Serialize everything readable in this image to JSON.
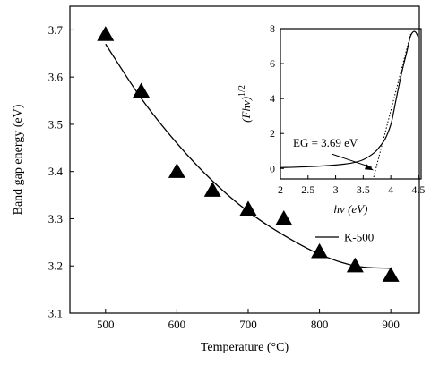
{
  "chart_data": [
    {
      "type": "scatter",
      "xlabel": "Temperature (°C)",
      "ylabel": "Band gap energy (eV)",
      "xlim": [
        450,
        940
      ],
      "ylim": [
        3.1,
        3.75
      ],
      "xticks": [
        500,
        600,
        700,
        800,
        900
      ],
      "yticks": [
        3.1,
        3.2,
        3.3,
        3.4,
        3.5,
        3.6,
        3.7
      ],
      "ytick_labels": [
        "3.1",
        "3.2",
        "3.3",
        "3.4",
        "3.5",
        "3.6",
        "3.7"
      ],
      "points": {
        "x": [
          500,
          550,
          600,
          650,
          700,
          750,
          800,
          850,
          900
        ],
        "y": [
          3.69,
          3.57,
          3.4,
          3.36,
          3.32,
          3.3,
          3.23,
          3.2,
          3.18
        ]
      },
      "fit": {
        "x": [
          500,
          550,
          600,
          650,
          700,
          750,
          800,
          850,
          900
        ],
        "y": [
          3.67,
          3.555,
          3.46,
          3.38,
          3.315,
          3.265,
          3.225,
          3.2,
          3.195
        ]
      },
      "marker": "triangle",
      "legend": {
        "label": "K-500",
        "placement": "inside-right"
      }
    },
    {
      "type": "line",
      "xlabel": "hν (eV)",
      "ylabel": "(Fhν)^1/2",
      "ylabel_base": "(Fhν)",
      "ylabel_sup": "1/2",
      "xlim": [
        2,
        4.55
      ],
      "ylim": [
        -0.6,
        8
      ],
      "xticks": [
        2,
        2.5,
        3,
        3.5,
        4,
        4.5
      ],
      "xtick_labels": [
        "2",
        "2.5",
        "3",
        "3.5",
        "4",
        "4.5"
      ],
      "yticks": [
        0,
        2,
        4,
        6,
        8
      ],
      "curve": {
        "x": [
          2.0,
          2.5,
          3.0,
          3.3,
          3.5,
          3.7,
          3.8,
          3.9,
          4.0,
          4.05,
          4.1,
          4.2,
          4.3,
          4.35,
          4.4,
          4.45,
          4.5
        ],
        "y": [
          0.05,
          0.1,
          0.2,
          0.32,
          0.5,
          0.9,
          1.25,
          1.7,
          2.5,
          3.2,
          4.0,
          5.5,
          6.8,
          7.5,
          7.8,
          7.8,
          7.5
        ]
      },
      "tangent": {
        "x": [
          3.69,
          4.36
        ],
        "y": [
          -0.5,
          7.7
        ]
      },
      "annotation": {
        "text": "EG = 3.69 eV",
        "target_x": 3.69,
        "target_y": -0.1
      }
    }
  ]
}
